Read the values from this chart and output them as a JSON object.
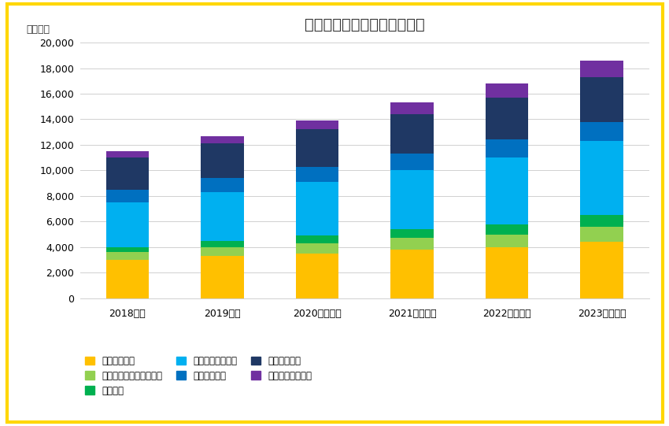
{
  "title": "ソフトウェア開発の国内市场",
  "ylabel_unit": "（億円）",
  "categories": [
    "2018年度",
    "2019年度",
    "2020年度予測",
    "2021年度予測",
    "2022年度予測",
    "2023年度予測"
  ],
  "series": {
    "業務システム": [
      3000,
      3300,
      3500,
      3800,
      4000,
      4400
    ],
    "デジタルマーケティング": [
      600,
      700,
      800,
      900,
      1000,
      1200
    ],
    "情報分析": [
      400,
      500,
      600,
      700,
      800,
      900
    ],
    "コラボレーション": [
      3500,
      3800,
      4200,
      4600,
      5200,
      5800
    ],
    "ミドルウェア": [
      1000,
      1100,
      1200,
      1300,
      1400,
      1500
    ],
    "データベース": [
      2500,
      2700,
      2900,
      3100,
      3300,
      3500
    ],
    "運用・管理ツール": [
      500,
      600,
      700,
      900,
      1100,
      1300
    ]
  },
  "colors": {
    "業務システム": "#FFC000",
    "デジタルマーケティング": "#92D050",
    "情報分析": "#00B050",
    "コラボレーション": "#00B0F0",
    "ミドルウェア": "#0070C0",
    "データベース": "#1F3864",
    "運用・管理ツール": "#7030A0"
  },
  "ylim": [
    0,
    20000
  ],
  "yticks": [
    0,
    2000,
    4000,
    6000,
    8000,
    10000,
    12000,
    14000,
    16000,
    18000,
    20000
  ],
  "background_color": "#ffffff",
  "border_color": "#FFD700",
  "bar_width": 0.45,
  "legend_order": [
    "業務システム",
    "デジタルマーケティング",
    "情報分析",
    "コラボレーション",
    "ミドルウェア",
    "データベース",
    "運用・管理ツール"
  ]
}
